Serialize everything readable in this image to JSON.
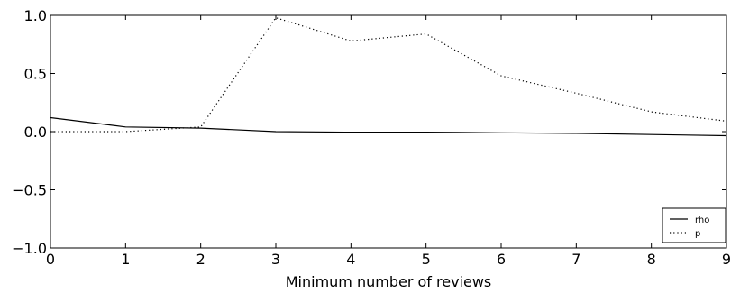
{
  "chart_data": {
    "type": "line",
    "title": "",
    "xlabel": "Minimum number of reviews",
    "ylabel": "",
    "x": [
      0,
      1,
      2,
      3,
      4,
      5,
      6,
      7,
      8,
      9
    ],
    "xlim": [
      0,
      9
    ],
    "ylim": [
      -1.0,
      1.0
    ],
    "xticks": [
      "0",
      "1",
      "2",
      "3",
      "4",
      "5",
      "6",
      "7",
      "8",
      "9"
    ],
    "yticks": [
      "−1.0",
      "−0.5",
      "0.0",
      "0.5",
      "1.0"
    ],
    "grid": false,
    "legend_position": "lower-right",
    "series": [
      {
        "name": "rho",
        "style": "solid",
        "color": "#000000",
        "values": [
          0.12,
          0.04,
          0.03,
          0.0,
          -0.005,
          -0.005,
          -0.01,
          -0.015,
          -0.025,
          -0.035
        ]
      },
      {
        "name": "p",
        "style": "dotted",
        "color": "#000000",
        "values": [
          0.0,
          0.0,
          0.04,
          0.98,
          0.78,
          0.84,
          0.48,
          0.33,
          0.17,
          0.09
        ]
      }
    ]
  }
}
